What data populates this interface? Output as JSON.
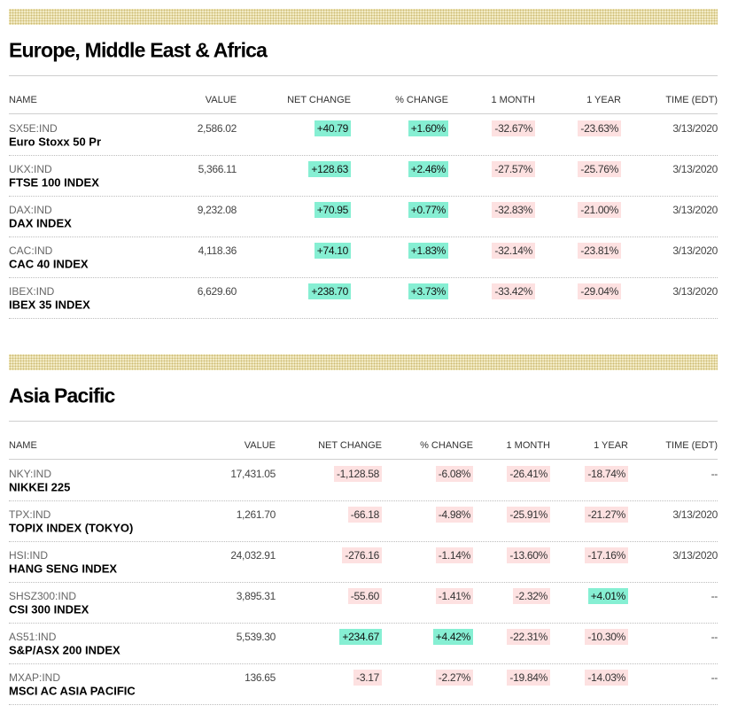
{
  "sections": [
    {
      "title": "Europe, Middle East & Africa",
      "columns": [
        "NAME",
        "VALUE",
        "NET CHANGE",
        "% CHANGE",
        "1 MONTH",
        "1 YEAR",
        "TIME (EDT)"
      ],
      "rows": [
        {
          "ticker": "SX5E:IND",
          "name": "Euro Stoxx 50 Pr",
          "cells": [
            "2,586.02",
            "+40.79",
            "+1.60%",
            "-32.67%",
            "-23.63%",
            "3/13/2020"
          ]
        },
        {
          "ticker": "UKX:IND",
          "name": "FTSE 100 INDEX",
          "cells": [
            "5,366.11",
            "+128.63",
            "+2.46%",
            "-27.57%",
            "-25.76%",
            "3/13/2020"
          ]
        },
        {
          "ticker": "DAX:IND",
          "name": "DAX INDEX",
          "cells": [
            "9,232.08",
            "+70.95",
            "+0.77%",
            "-32.83%",
            "-21.00%",
            "3/13/2020"
          ]
        },
        {
          "ticker": "CAC:IND",
          "name": "CAC 40 INDEX",
          "cells": [
            "4,118.36",
            "+74.10",
            "+1.83%",
            "-32.14%",
            "-23.81%",
            "3/13/2020"
          ]
        },
        {
          "ticker": "IBEX:IND",
          "name": "IBEX 35 INDEX",
          "cells": [
            "6,629.60",
            "+238.70",
            "+3.73%",
            "-33.42%",
            "-29.04%",
            "3/13/2020"
          ]
        }
      ]
    },
    {
      "title": "Asia Pacific",
      "columns": [
        "NAME",
        "VALUE",
        "NET CHANGE",
        "% CHANGE",
        "1 MONTH",
        "1 YEAR",
        "TIME (EDT)"
      ],
      "rows": [
        {
          "ticker": "NKY:IND",
          "name": "NIKKEI 225",
          "cells": [
            "17,431.05",
            "-1,128.58",
            "-6.08%",
            "-26.41%",
            "-18.74%",
            "--"
          ]
        },
        {
          "ticker": "TPX:IND",
          "name": "TOPIX INDEX (TOKYO)",
          "cells": [
            "1,261.70",
            "-66.18",
            "-4.98%",
            "-25.91%",
            "-21.27%",
            "3/13/2020"
          ]
        },
        {
          "ticker": "HSI:IND",
          "name": "HANG SENG INDEX",
          "cells": [
            "24,032.91",
            "-276.16",
            "-1.14%",
            "-13.60%",
            "-17.16%",
            "3/13/2020"
          ]
        },
        {
          "ticker": "SHSZ300:IND",
          "name": "CSI 300 INDEX",
          "cells": [
            "3,895.31",
            "-55.60",
            "-1.41%",
            "-2.32%",
            "+4.01%",
            "--"
          ]
        },
        {
          "ticker": "AS51:IND",
          "name": "S&P/ASX 200 INDEX",
          "cells": [
            "5,539.30",
            "+234.67",
            "+4.42%",
            "-22.31%",
            "-10.30%",
            "--"
          ]
        },
        {
          "ticker": "MXAP:IND",
          "name": "MSCI AC ASIA PACIFIC",
          "cells": [
            "136.65",
            "-3.17",
            "-2.27%",
            "-19.84%",
            "-14.03%",
            "--"
          ]
        }
      ]
    }
  ]
}
